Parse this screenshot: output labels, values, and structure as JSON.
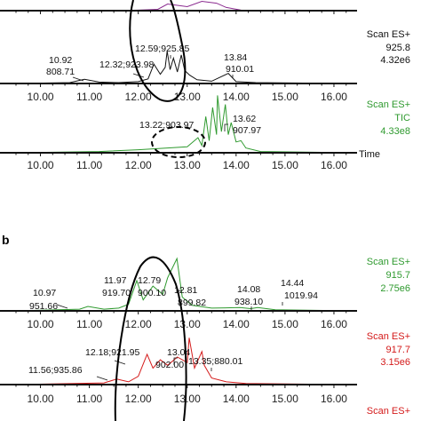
{
  "figure": {
    "panel_letter": "b",
    "colors": {
      "purple": "#8a2b8f",
      "black": "#111111",
      "green": "#2f9a2f",
      "red": "#d41a1a",
      "axis": "#111111"
    }
  },
  "chart_data": [
    {
      "type": "line",
      "panel": "a",
      "id": "a-top",
      "color": "#8a2b8f",
      "xlim": [
        9.5,
        16.4
      ],
      "ticks": [
        "10.00",
        "11.00",
        "12.00",
        "13.00",
        "14.00",
        "15.00",
        "16.00"
      ],
      "tick_values": [
        10,
        11,
        12,
        13,
        14,
        15,
        16
      ],
      "x": [
        9.5,
        11.5,
        12.0,
        12.4,
        12.6,
        12.8,
        13.0,
        13.3,
        13.6,
        13.8,
        14.1,
        16.4
      ],
      "y": [
        0,
        0,
        0.02,
        0.05,
        0.25,
        0.2,
        0.15,
        0.35,
        0.28,
        0.12,
        0.02,
        0
      ],
      "series_label": "",
      "mz_label": "",
      "intensity_label": "",
      "annotations": []
    },
    {
      "type": "line",
      "panel": "a",
      "id": "a-mid",
      "color": "#111111",
      "xlim": [
        9.5,
        16.4
      ],
      "ticks": [
        "10.00",
        "11.00",
        "12.00",
        "13.00",
        "14.00",
        "15.00",
        "16.00"
      ],
      "tick_values": [
        10,
        11,
        12,
        13,
        14,
        15,
        16
      ],
      "x": [
        9.5,
        10.6,
        10.9,
        11.2,
        11.6,
        12.0,
        12.2,
        12.32,
        12.45,
        12.55,
        12.59,
        12.65,
        12.72,
        12.8,
        12.88,
        12.95,
        13.05,
        13.2,
        13.5,
        13.84,
        14.0,
        14.4,
        16.4
      ],
      "y": [
        0,
        0.02,
        0.09,
        0.03,
        0.02,
        0.04,
        0.1,
        0.42,
        0.2,
        0.35,
        0.7,
        0.3,
        0.55,
        0.25,
        0.62,
        0.28,
        0.18,
        0.08,
        0.05,
        0.22,
        0.04,
        0.02,
        0
      ],
      "series_label": "Scan ES+",
      "mz_label": "925.8",
      "intensity_label": "4.32e6",
      "annotations": [
        {
          "x": 10.92,
          "rt": "10.92",
          "mz": "808.71"
        },
        {
          "x": 12.32,
          "label": "12.32;923.98"
        },
        {
          "x": 12.59,
          "label": "12.59;925.85"
        },
        {
          "x": 13.84,
          "rt": "13.84",
          "mz": "910.01"
        }
      ]
    },
    {
      "type": "line",
      "panel": "a",
      "id": "a-tic",
      "color": "#2f9a2f",
      "xlim": [
        9.5,
        16.4
      ],
      "ticks": [
        "10.00",
        "11.00",
        "12.00",
        "13.00",
        "14.00",
        "15.00",
        "16.00"
      ],
      "tick_values": [
        10,
        11,
        12,
        13,
        14,
        15,
        16
      ],
      "x": [
        9.5,
        11.2,
        12.0,
        12.6,
        13.0,
        13.22,
        13.3,
        13.38,
        13.45,
        13.52,
        13.6,
        13.62,
        13.7,
        13.78,
        13.84,
        13.9,
        14.0,
        14.1,
        14.2,
        14.5,
        16.4
      ],
      "y": [
        0,
        0.02,
        0.05,
        0.08,
        0.1,
        0.25,
        0.12,
        0.6,
        0.2,
        0.75,
        0.3,
        0.95,
        0.35,
        0.8,
        0.3,
        0.5,
        0.18,
        0.2,
        0.08,
        0.02,
        0
      ],
      "series_label": "Scan ES+",
      "mz_label": "TIC",
      "intensity_label": "4.33e8",
      "x_axis_label": "Time",
      "annotations": [
        {
          "x": 13.22,
          "label": "13.22;903.97"
        },
        {
          "x": 13.62,
          "rt": "13.62",
          "mz": "907.97"
        }
      ]
    },
    {
      "type": "line",
      "panel": "b",
      "id": "b-green",
      "color": "#2f9a2f",
      "xlim": [
        9.5,
        16.4
      ],
      "ticks": [
        "10.00",
        "11.00",
        "12.00",
        "13.00",
        "14.00",
        "15.00",
        "16.00"
      ],
      "tick_values": [
        10,
        11,
        12,
        13,
        14,
        15,
        16
      ],
      "x": [
        9.5,
        10.8,
        10.97,
        11.3,
        11.6,
        11.8,
        11.97,
        12.1,
        12.3,
        12.5,
        12.6,
        12.79,
        12.9,
        13.1,
        13.5,
        14.08,
        14.3,
        14.44,
        14.8,
        16.4
      ],
      "y": [
        0,
        0.03,
        0.08,
        0.03,
        0.05,
        0.12,
        0.55,
        0.2,
        0.45,
        0.3,
        0.6,
        0.95,
        0.25,
        0.1,
        0.05,
        0.06,
        0.04,
        0.06,
        0.02,
        0
      ],
      "series_label": "Scan ES+",
      "mz_label": "915.7",
      "intensity_label": "2.75e6",
      "annotations": [
        {
          "x": 10.97,
          "rt": "10.97",
          "mz": "951.66"
        },
        {
          "x": 11.97,
          "label": "11.97"
        },
        {
          "x": 12.05,
          "label": "919.70"
        },
        {
          "x": 12.79,
          "label": "12.79"
        },
        {
          "x": 12.55,
          "label": "900.10"
        },
        {
          "x": 12.81,
          "rt": "12.81",
          "mz": "899.82"
        },
        {
          "x": 14.08,
          "rt": "14.08",
          "mz": "938.10"
        },
        {
          "x": 14.44,
          "rt": "14.44",
          "mz": "1019.94"
        }
      ]
    },
    {
      "type": "line",
      "panel": "b",
      "id": "b-red",
      "color": "#d41a1a",
      "xlim": [
        9.5,
        16.4
      ],
      "ticks": [
        "10.00",
        "11.00",
        "12.00",
        "13.00",
        "14.00",
        "15.00",
        "16.00"
      ],
      "tick_values": [
        10,
        11,
        12,
        13,
        14,
        15,
        16
      ],
      "x": [
        9.5,
        11.3,
        11.56,
        11.8,
        12.0,
        12.18,
        12.3,
        12.45,
        12.6,
        12.8,
        13.0,
        13.04,
        13.15,
        13.3,
        13.35,
        13.5,
        13.8,
        14.2,
        16.4
      ],
      "y": [
        0,
        0.03,
        0.1,
        0.05,
        0.15,
        0.55,
        0.3,
        0.45,
        0.35,
        0.5,
        0.4,
        0.85,
        0.3,
        0.6,
        0.35,
        0.12,
        0.05,
        0.02,
        0
      ],
      "series_label": "Scan ES+",
      "mz_label": "917.7",
      "intensity_label": "3.15e6",
      "annotations": [
        {
          "x": 12.18,
          "label": "12.18;921.95"
        },
        {
          "x": 11.56,
          "label": "11.56;935.86"
        },
        {
          "x": 13.04,
          "rt": "13.04",
          "mz": "902.00"
        },
        {
          "x": 13.35,
          "label": "13.35;880.01"
        }
      ]
    },
    {
      "type": "line",
      "panel": "b",
      "id": "b-bottom",
      "color": "#d41a1a",
      "xlim": [
        9.5,
        16.4
      ],
      "ticks": [],
      "tick_values": [],
      "x": [],
      "y": [],
      "series_label": "Scan ES+",
      "mz_label": "",
      "intensity_label": "",
      "annotations": []
    }
  ]
}
